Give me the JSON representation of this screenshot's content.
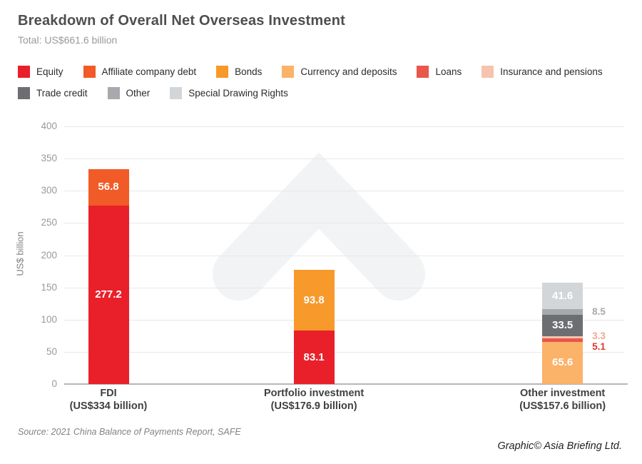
{
  "header": {
    "title": "Breakdown of Overall Net Overseas Investment",
    "subtitle": "Total: US$661.6 billion"
  },
  "legend": {
    "rows": [
      [
        {
          "label": "Equity",
          "color": "#e9202a"
        },
        {
          "label": "Affiliate company debt",
          "color": "#f05b28"
        },
        {
          "label": "Bonds",
          "color": "#f8992b"
        },
        {
          "label": "Currency and deposits",
          "color": "#fbb269"
        },
        {
          "label": "Loans",
          "color": "#e9564b"
        },
        {
          "label": "Insurance and pensions",
          "color": "#f6c4ae"
        }
      ],
      [
        {
          "label": "Trade credit",
          "color": "#6d6e71"
        },
        {
          "label": "Other",
          "color": "#a7a9ac"
        },
        {
          "label": "Special Drawing Rights",
          "color": "#d2d6d9"
        }
      ]
    ]
  },
  "chart_data": {
    "type": "bar",
    "stacked": true,
    "title": "Breakdown of Overall Net Overseas Investment",
    "subtitle": "Total: US$661.6 billion",
    "ylabel": "US$ billion",
    "ylim": [
      0,
      400
    ],
    "yticks": [
      0,
      50,
      100,
      150,
      200,
      250,
      300,
      350,
      400
    ],
    "grid": true,
    "legend_position": "top",
    "bars": [
      {
        "category": "FDI",
        "category_sub": "(US$334 billion)",
        "total": 334,
        "segments": [
          {
            "name": "Equity",
            "value": 277.2,
            "color": "#e9202a",
            "label_pos": "inside"
          },
          {
            "name": "Affiliate company debt",
            "value": 56.8,
            "color": "#f05b28",
            "label_pos": "inside"
          }
        ]
      },
      {
        "category": "Portfolio investment",
        "category_sub": "(US$176.9 billion)",
        "total": 176.9,
        "segments": [
          {
            "name": "Equity",
            "value": 83.1,
            "color": "#e9202a",
            "label_pos": "inside"
          },
          {
            "name": "Bonds",
            "value": 93.8,
            "color": "#f8992b",
            "label_pos": "inside"
          }
        ]
      },
      {
        "category": "Other investment",
        "category_sub": "(US$157.6 billion)",
        "total": 157.6,
        "segments": [
          {
            "name": "Currency and deposits",
            "value": 65.6,
            "color": "#fbb269",
            "label_pos": "inside"
          },
          {
            "name": "Loans",
            "value": 5.1,
            "color": "#e9564b",
            "label_pos": "outside",
            "label_color": "#e0392d",
            "label_dy": 10
          },
          {
            "name": "Insurance and pensions",
            "value": 3.3,
            "color": "#f6c4ae",
            "label_pos": "outside",
            "label_color": "#f3a78d",
            "label_dy": -2
          },
          {
            "name": "Trade credit",
            "value": 33.5,
            "color": "#6d6e71",
            "label_pos": "inside"
          },
          {
            "name": "Other",
            "value": 8.5,
            "color": "#a7a9ac",
            "label_pos": "outside",
            "label_color": "#a7a9ac",
            "label_dy": 0
          },
          {
            "name": "Special Drawing Rights",
            "value": 41.6,
            "color": "#d2d6d9",
            "label_pos": "inside"
          }
        ]
      }
    ]
  },
  "footer": {
    "source": "Source: 2021 China Balance of Payments Report, SAFE",
    "credit": "Graphic© Asia Briefing Ltd."
  },
  "icons": {
    "watermark": "asia-briefing-chevron"
  },
  "colors": {
    "title_text": "#4d4e50",
    "muted_text": "#97999c",
    "axis_line": "#b4b6b8",
    "gridline": "#e7e8e9",
    "watermark": "#f2f3f4"
  }
}
